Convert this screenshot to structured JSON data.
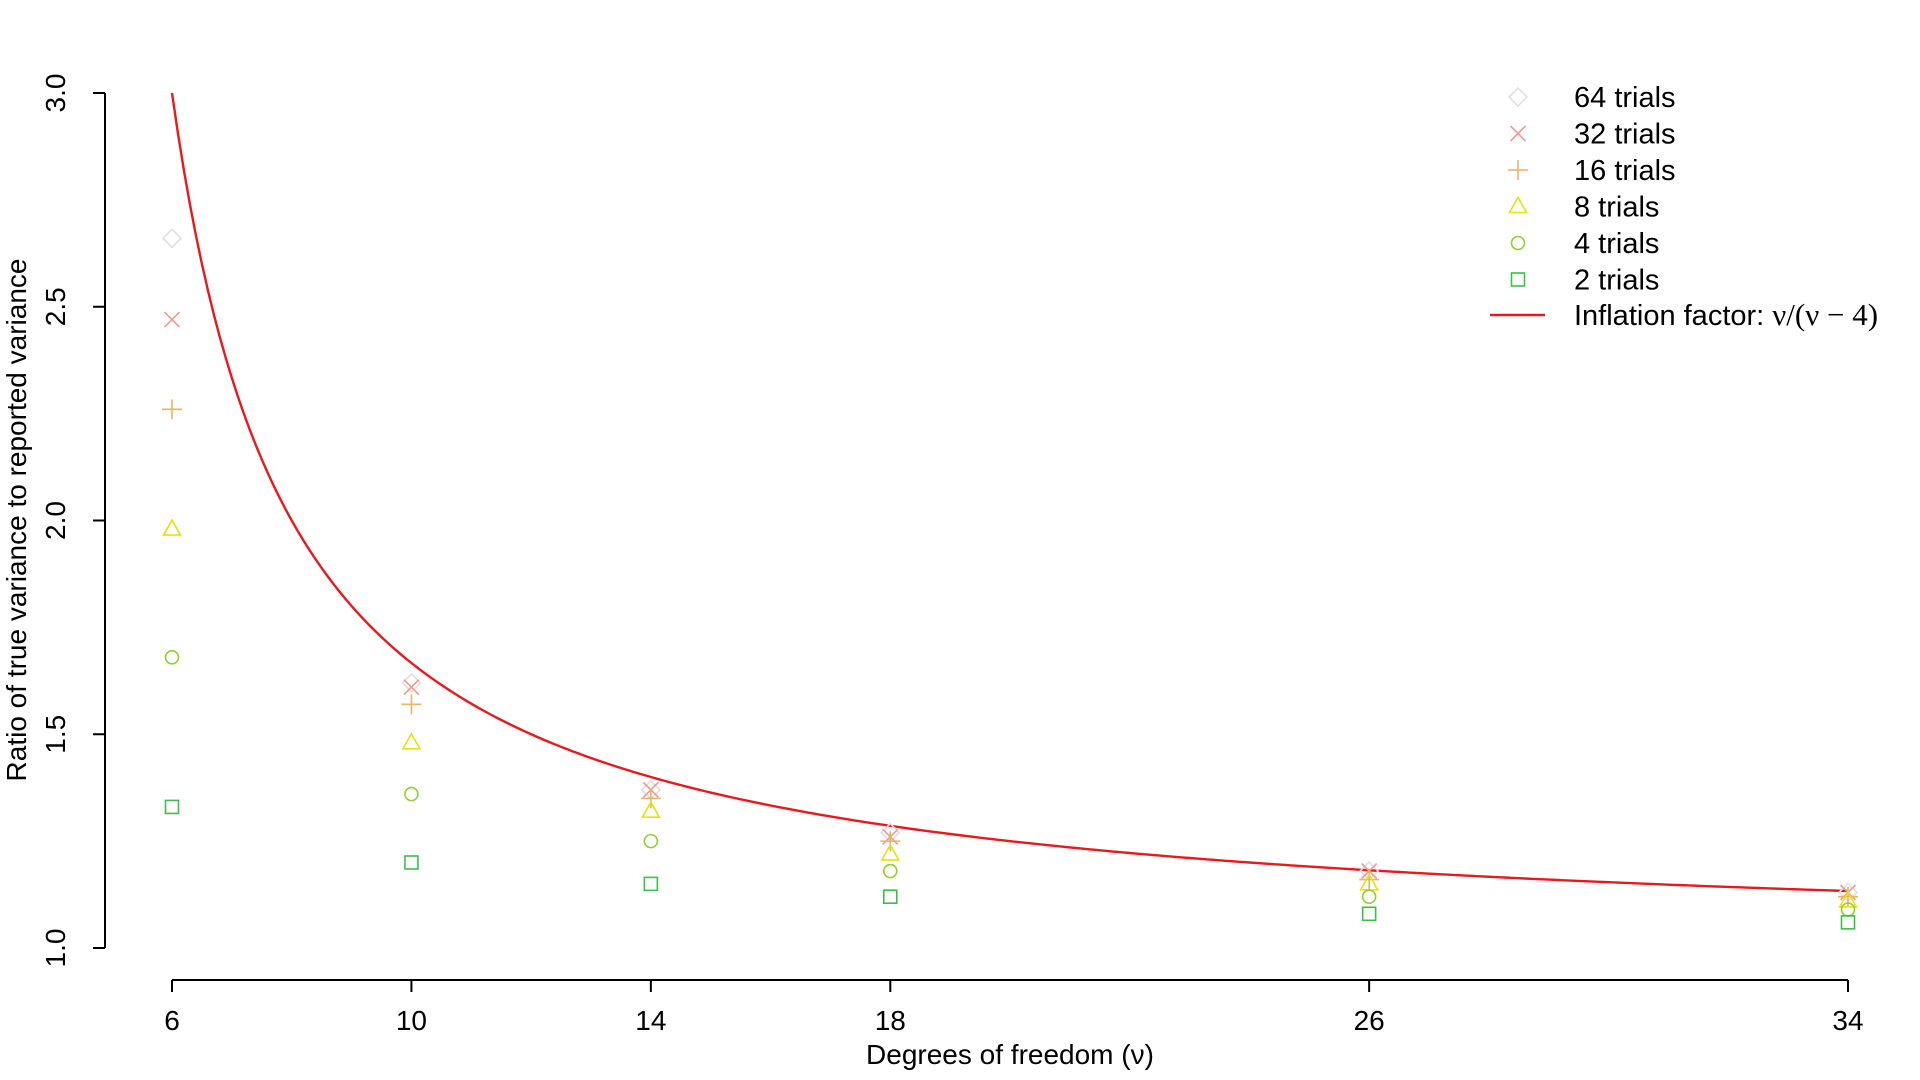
{
  "chart_data": {
    "type": "scatter",
    "xlabel": "Degrees of freedom (ν)",
    "ylabel": "Ratio of true variance to reported variance",
    "x_ticks": [
      6,
      10,
      14,
      18,
      26,
      34
    ],
    "y_ticks": [
      "1.0",
      "1.5",
      "2.0",
      "2.5",
      "3.0"
    ],
    "xlim": [
      6,
      34
    ],
    "ylim": [
      1.0,
      3.0
    ],
    "x": [
      6,
      10,
      14,
      18,
      26,
      34
    ],
    "grid": false,
    "legend_position": "top-right",
    "series": [
      {
        "name": "64 trials",
        "marker": "diamond",
        "color": "#dfdfdf",
        "values": [
          2.66,
          1.62,
          1.37,
          1.27,
          1.18,
          1.13
        ]
      },
      {
        "name": "32 trials",
        "marker": "cross",
        "color": "#ee9a90",
        "values": [
          2.47,
          1.61,
          1.37,
          1.26,
          1.18,
          1.13
        ]
      },
      {
        "name": "16 trials",
        "marker": "plus",
        "color": "#e9b463",
        "values": [
          2.26,
          1.57,
          1.35,
          1.25,
          1.16,
          1.12
        ]
      },
      {
        "name": "8 trials",
        "marker": "triangle",
        "color": "#e6e20f",
        "values": [
          1.98,
          1.48,
          1.32,
          1.22,
          1.15,
          1.11
        ]
      },
      {
        "name": "4 trials",
        "marker": "circle",
        "color": "#8ed12c",
        "values": [
          1.68,
          1.36,
          1.25,
          1.18,
          1.12,
          1.09
        ]
      },
      {
        "name": "2 trials",
        "marker": "square",
        "color": "#3cbf47",
        "values": [
          1.33,
          1.2,
          1.15,
          1.12,
          1.08,
          1.06
        ]
      }
    ],
    "curve": {
      "name": "Inflation factor: ",
      "formula": "ν/(ν − 4)",
      "color": "#e8191c"
    }
  }
}
